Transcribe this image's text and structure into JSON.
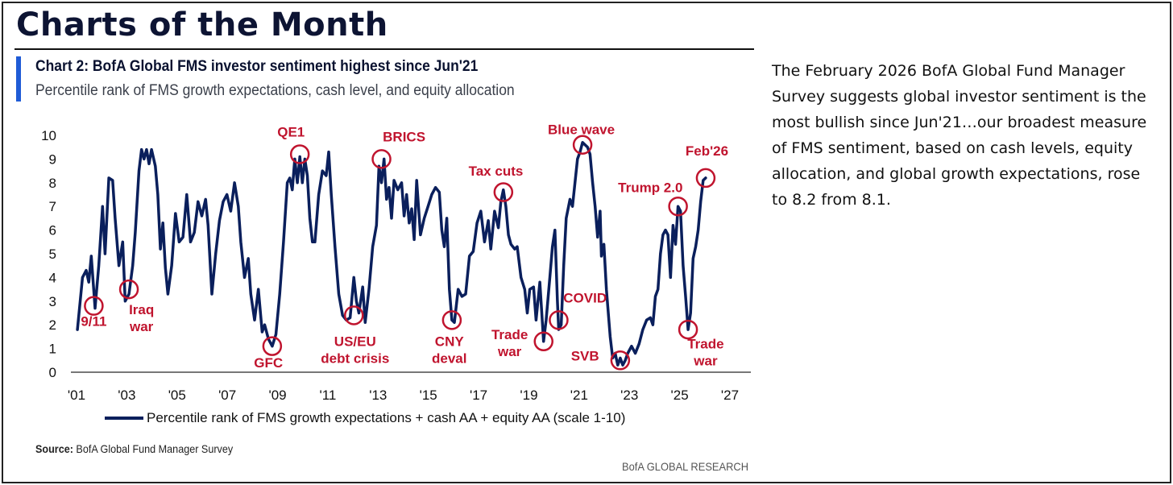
{
  "page_title": "Charts of the Month",
  "chart_title": "Chart 2: BofA Global FMS investor sentiment highest since Jun'21",
  "chart_subtitle": "Percentile rank of FMS growth expectations, cash level, and equity allocation",
  "source_label": "Source:",
  "source_text": "BofA Global Fund Manager Survey",
  "footer_brand": "BofA GLOBAL RESEARCH",
  "commentary": "The February 2026 BofA Global Fund Manager Survey suggests global investor sentiment is the most bullish since Jun'21…our broadest measure of FMS sentiment, based on cash levels, equity allocation, and global growth expectations, rose to 8.2 from 8.1.",
  "colors": {
    "line": "#0a1f5c",
    "annotation": "#c0142e",
    "accent": "#1f5bd6"
  },
  "chart_data": {
    "type": "line",
    "title": "Chart 2: BofA Global FMS investor sentiment highest since Jun'21",
    "subtitle": "Percentile rank of FMS growth expectations, cash level, and equity allocation",
    "xlabel": "",
    "ylabel": "",
    "xlim": [
      2001,
      2027
    ],
    "ylim": [
      0,
      10
    ],
    "yticks": [
      "0",
      "1",
      "2",
      "3",
      "4",
      "5",
      "6",
      "7",
      "8",
      "9",
      "10"
    ],
    "xticks": [
      {
        "value": 2001,
        "label": "'01"
      },
      {
        "value": 2003,
        "label": "'03"
      },
      {
        "value": 2005,
        "label": "'05"
      },
      {
        "value": 2007,
        "label": "'07"
      },
      {
        "value": 2009,
        "label": "'09"
      },
      {
        "value": 2011,
        "label": "'11"
      },
      {
        "value": 2013,
        "label": "'13"
      },
      {
        "value": 2015,
        "label": "'15"
      },
      {
        "value": 2017,
        "label": "'17"
      },
      {
        "value": 2019,
        "label": "'19"
      },
      {
        "value": 2021,
        "label": "'21"
      },
      {
        "value": 2023,
        "label": "'23"
      },
      {
        "value": 2025,
        "label": "'25"
      },
      {
        "value": 2027,
        "label": "'27"
      }
    ],
    "legend": "top-left below axis",
    "series": [
      {
        "name": "Percentile rank of FMS growth expectations + cash AA + equity AA (scale 1-10)",
        "points": [
          [
            2001.1,
            1.8
          ],
          [
            2001.3,
            4.0
          ],
          [
            2001.45,
            4.3
          ],
          [
            2001.55,
            3.8
          ],
          [
            2001.65,
            4.9
          ],
          [
            2001.8,
            2.7
          ],
          [
            2001.95,
            4.5
          ],
          [
            2002.1,
            7.0
          ],
          [
            2002.2,
            5.0
          ],
          [
            2002.35,
            8.2
          ],
          [
            2002.5,
            8.1
          ],
          [
            2002.6,
            6.5
          ],
          [
            2002.75,
            4.5
          ],
          [
            2002.9,
            5.5
          ],
          [
            2003.0,
            3.0
          ],
          [
            2003.15,
            3.3
          ],
          [
            2003.3,
            4.5
          ],
          [
            2003.4,
            5.9
          ],
          [
            2003.55,
            8.5
          ],
          [
            2003.65,
            9.4
          ],
          [
            2003.75,
            9.0
          ],
          [
            2003.85,
            9.4
          ],
          [
            2003.95,
            8.8
          ],
          [
            2004.05,
            9.4
          ],
          [
            2004.2,
            8.7
          ],
          [
            2004.3,
            7.5
          ],
          [
            2004.4,
            5.2
          ],
          [
            2004.5,
            6.3
          ],
          [
            2004.6,
            4.4
          ],
          [
            2004.7,
            3.3
          ],
          [
            2004.85,
            4.5
          ],
          [
            2005.0,
            6.7
          ],
          [
            2005.15,
            5.5
          ],
          [
            2005.3,
            5.7
          ],
          [
            2005.45,
            7.5
          ],
          [
            2005.6,
            5.5
          ],
          [
            2005.75,
            5.9
          ],
          [
            2005.9,
            7.2
          ],
          [
            2006.05,
            6.6
          ],
          [
            2006.2,
            7.3
          ],
          [
            2006.3,
            6.2
          ],
          [
            2006.45,
            3.3
          ],
          [
            2006.6,
            5.0
          ],
          [
            2006.75,
            6.4
          ],
          [
            2006.9,
            7.2
          ],
          [
            2007.05,
            7.5
          ],
          [
            2007.2,
            6.8
          ],
          [
            2007.35,
            8.0
          ],
          [
            2007.5,
            7.0
          ],
          [
            2007.6,
            5.5
          ],
          [
            2007.75,
            4.0
          ],
          [
            2007.9,
            4.8
          ],
          [
            2008.0,
            3.3
          ],
          [
            2008.15,
            2.2
          ],
          [
            2008.3,
            3.5
          ],
          [
            2008.45,
            1.7
          ],
          [
            2008.55,
            2.0
          ],
          [
            2008.7,
            1.4
          ],
          [
            2008.85,
            1.1
          ],
          [
            2009.0,
            1.6
          ],
          [
            2009.15,
            3.3
          ],
          [
            2009.3,
            5.5
          ],
          [
            2009.45,
            8.0
          ],
          [
            2009.55,
            8.2
          ],
          [
            2009.65,
            7.7
          ],
          [
            2009.75,
            9.0
          ],
          [
            2009.85,
            8.0
          ],
          [
            2009.95,
            9.1
          ],
          [
            2010.05,
            8.0
          ],
          [
            2010.15,
            9.0
          ],
          [
            2010.25,
            8.3
          ],
          [
            2010.35,
            6.5
          ],
          [
            2010.45,
            5.5
          ],
          [
            2010.55,
            5.5
          ],
          [
            2010.7,
            7.5
          ],
          [
            2010.85,
            8.5
          ],
          [
            2011.0,
            8.3
          ],
          [
            2011.1,
            9.3
          ],
          [
            2011.2,
            7.5
          ],
          [
            2011.35,
            5.3
          ],
          [
            2011.5,
            3.3
          ],
          [
            2011.65,
            2.4
          ],
          [
            2011.8,
            2.2
          ],
          [
            2011.95,
            2.3
          ],
          [
            2012.1,
            4.0
          ],
          [
            2012.2,
            3.0
          ],
          [
            2012.3,
            2.5
          ],
          [
            2012.45,
            3.6
          ],
          [
            2012.55,
            2.1
          ],
          [
            2012.7,
            3.5
          ],
          [
            2012.85,
            5.3
          ],
          [
            2013.0,
            6.2
          ],
          [
            2013.1,
            8.7
          ],
          [
            2013.2,
            8.0
          ],
          [
            2013.3,
            9.0
          ],
          [
            2013.4,
            7.3
          ],
          [
            2013.5,
            7.8
          ],
          [
            2013.6,
            6.5
          ],
          [
            2013.7,
            8.1
          ],
          [
            2013.85,
            7.7
          ],
          [
            2014.0,
            8.0
          ],
          [
            2014.1,
            6.6
          ],
          [
            2014.2,
            7.5
          ],
          [
            2014.3,
            6.3
          ],
          [
            2014.4,
            6.9
          ],
          [
            2014.5,
            5.6
          ],
          [
            2014.6,
            8.1
          ],
          [
            2014.75,
            5.8
          ],
          [
            2014.9,
            6.5
          ],
          [
            2015.05,
            7.0
          ],
          [
            2015.2,
            7.5
          ],
          [
            2015.35,
            7.8
          ],
          [
            2015.5,
            7.6
          ],
          [
            2015.6,
            6.0
          ],
          [
            2015.7,
            5.3
          ],
          [
            2015.8,
            6.5
          ],
          [
            2015.9,
            3.5
          ],
          [
            2016.0,
            2.2
          ],
          [
            2016.1,
            2.1
          ],
          [
            2016.25,
            3.5
          ],
          [
            2016.4,
            3.2
          ],
          [
            2016.55,
            3.3
          ],
          [
            2016.7,
            4.9
          ],
          [
            2016.85,
            5.1
          ],
          [
            2017.0,
            6.3
          ],
          [
            2017.15,
            6.8
          ],
          [
            2017.3,
            5.5
          ],
          [
            2017.45,
            6.4
          ],
          [
            2017.55,
            5.2
          ],
          [
            2017.7,
            6.8
          ],
          [
            2017.85,
            6.1
          ],
          [
            2017.95,
            7.2
          ],
          [
            2018.05,
            7.7
          ],
          [
            2018.15,
            7.0
          ],
          [
            2018.25,
            5.8
          ],
          [
            2018.35,
            5.4
          ],
          [
            2018.5,
            5.2
          ],
          [
            2018.6,
            5.3
          ],
          [
            2018.75,
            4.0
          ],
          [
            2018.9,
            3.5
          ],
          [
            2019.0,
            2.5
          ],
          [
            2019.1,
            3.5
          ],
          [
            2019.25,
            3.6
          ],
          [
            2019.35,
            2.2
          ],
          [
            2019.5,
            3.8
          ],
          [
            2019.65,
            1.3
          ],
          [
            2019.75,
            2.2
          ],
          [
            2019.9,
            4.0
          ],
          [
            2020.0,
            5.3
          ],
          [
            2020.1,
            6.0
          ],
          [
            2020.2,
            3.0
          ],
          [
            2020.25,
            1.8
          ],
          [
            2020.35,
            2.0
          ],
          [
            2020.45,
            4.5
          ],
          [
            2020.55,
            6.5
          ],
          [
            2020.7,
            7.3
          ],
          [
            2020.8,
            7.0
          ],
          [
            2020.9,
            8.0
          ],
          [
            2021.0,
            9.0
          ],
          [
            2021.1,
            9.3
          ],
          [
            2021.2,
            9.7
          ],
          [
            2021.3,
            9.6
          ],
          [
            2021.4,
            9.5
          ],
          [
            2021.5,
            9.2
          ],
          [
            2021.6,
            8.0
          ],
          [
            2021.7,
            7.0
          ],
          [
            2021.8,
            5.7
          ],
          [
            2021.9,
            6.8
          ],
          [
            2021.95,
            4.9
          ],
          [
            2022.05,
            5.4
          ],
          [
            2022.15,
            3.5
          ],
          [
            2022.3,
            1.5
          ],
          [
            2022.4,
            0.6
          ],
          [
            2022.5,
            0.8
          ],
          [
            2022.6,
            0.3
          ],
          [
            2022.7,
            0.6
          ],
          [
            2022.8,
            0.3
          ],
          [
            2022.9,
            0.5
          ],
          [
            2023.0,
            0.8
          ],
          [
            2023.15,
            1.1
          ],
          [
            2023.3,
            0.8
          ],
          [
            2023.45,
            1.2
          ],
          [
            2023.6,
            1.8
          ],
          [
            2023.75,
            2.2
          ],
          [
            2023.9,
            2.3
          ],
          [
            2024.0,
            2.0
          ],
          [
            2024.1,
            3.2
          ],
          [
            2024.2,
            3.5
          ],
          [
            2024.3,
            5.0
          ],
          [
            2024.4,
            5.8
          ],
          [
            2024.5,
            6.0
          ],
          [
            2024.6,
            5.8
          ],
          [
            2024.7,
            4.0
          ],
          [
            2024.8,
            6.2
          ],
          [
            2024.9,
            5.4
          ],
          [
            2025.0,
            7.0
          ],
          [
            2025.1,
            6.8
          ],
          [
            2025.2,
            4.5
          ],
          [
            2025.3,
            3.2
          ],
          [
            2025.4,
            1.8
          ],
          [
            2025.5,
            2.5
          ],
          [
            2025.6,
            4.8
          ],
          [
            2025.7,
            5.3
          ],
          [
            2025.8,
            6.0
          ],
          [
            2025.9,
            7.2
          ],
          [
            2026.0,
            8.1
          ],
          [
            2026.1,
            8.2
          ]
        ]
      }
    ],
    "annotations": [
      {
        "label": "9/11",
        "x": 2001.75,
        "y": 2.8,
        "text_x": 2001.75,
        "text_y": 1.95
      },
      {
        "label": "Iraq\nwar",
        "x": 2003.15,
        "y": 3.5,
        "text_x": 2003.65,
        "text_y": 2.45
      },
      {
        "label": "GFC",
        "x": 2008.85,
        "y": 1.1,
        "text_x": 2008.7,
        "text_y": 0.2
      },
      {
        "label": "QE1",
        "x": 2009.95,
        "y": 9.2,
        "text_x": 2009.6,
        "text_y": 9.95
      },
      {
        "label": "US/EU\ndebt crisis",
        "x": 2012.1,
        "y": 2.4,
        "text_x": 2012.15,
        "text_y": 1.1
      },
      {
        "label": "BRICS",
        "x": 2013.2,
        "y": 9.0,
        "text_x": 2014.1,
        "text_y": 9.75
      },
      {
        "label": "CNY\ndeval",
        "x": 2016.0,
        "y": 2.2,
        "text_x": 2015.9,
        "text_y": 1.1
      },
      {
        "label": "Tax cuts",
        "x": 2018.05,
        "y": 7.6,
        "text_x": 2017.75,
        "text_y": 8.3
      },
      {
        "label": "Trade\nwar",
        "x": 2019.65,
        "y": 1.3,
        "text_x": 2018.3,
        "text_y": 1.4
      },
      {
        "label": "COVID",
        "x": 2020.25,
        "y": 2.2,
        "text_x": 2021.3,
        "text_y": 2.95
      },
      {
        "label": "Blue wave",
        "x": 2021.2,
        "y": 9.6,
        "text_x": 2021.15,
        "text_y": 10.05
      },
      {
        "label": "SVB",
        "x": 2022.7,
        "y": 0.5,
        "text_x": 2021.3,
        "text_y": 0.5
      },
      {
        "label": "Trump 2.0",
        "x": 2025.0,
        "y": 7.0,
        "text_x": 2023.9,
        "text_y": 7.6
      },
      {
        "label": "Feb'26",
        "x": 2026.1,
        "y": 8.2,
        "text_x": 2026.15,
        "text_y": 9.15
      },
      {
        "label": "Trade\nwar",
        "x": 2025.4,
        "y": 1.8,
        "text_x": 2026.1,
        "text_y": 1.0
      }
    ]
  }
}
